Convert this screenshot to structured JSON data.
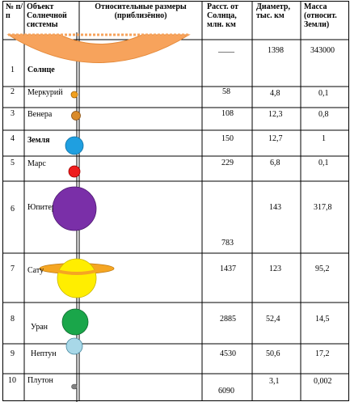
{
  "headers": {
    "num": "№ п/п",
    "object": "Объект Солнечной системы",
    "sizes": "Относительные размеры (приблизённо)",
    "distance": "Расст. от Солнца, млн. км",
    "diameter": "Диаметр, тыс. км",
    "mass": "Масса (относит. Земли)"
  },
  "rows": [
    {
      "num": "1",
      "name": "Солнце",
      "distance": "____",
      "diameter": "1398",
      "mass": "343000",
      "color": "#f7a35c"
    },
    {
      "num": "2",
      "name": "Меркурий",
      "distance": "58",
      "diameter": "4,8",
      "mass": "0,1",
      "color": "#f0a020"
    },
    {
      "num": "3",
      "name": "Венера",
      "distance": "108",
      "diameter": "12,3",
      "mass": "0,8",
      "color": "#d98b2b"
    },
    {
      "num": "4",
      "name": "Земля",
      "distance": "150",
      "diameter": "12,7",
      "mass": "1",
      "color": "#1f9fe0"
    },
    {
      "num": "5",
      "name": "Марс",
      "distance": "229",
      "diameter": "6,8",
      "mass": "0,1",
      "color": "#ee1c1c"
    },
    {
      "num": "6",
      "name": "Юпитер",
      "distance": "783",
      "diameter": "143",
      "mass": "317,8",
      "color": "#7a2fa8"
    },
    {
      "num": "7",
      "name": "Сатурн",
      "distance": "1437",
      "diameter": "123",
      "mass": "95,2",
      "color": "#ffee00"
    },
    {
      "num": "8",
      "name": "Уран",
      "distance": "2885",
      "diameter": "52,4",
      "mass": "14,5",
      "color": "#1aa64a"
    },
    {
      "num": "9",
      "name": "Нептун",
      "distance": "4530",
      "diameter": "50,6",
      "mass": "17,2",
      "color": "#a8d8e8"
    },
    {
      "num": "10",
      "name": "Плутон",
      "distance": "6090",
      "diameter": "3,1",
      "mass": "0,002",
      "color": "#808080"
    }
  ],
  "ring_color": "#f5a623"
}
